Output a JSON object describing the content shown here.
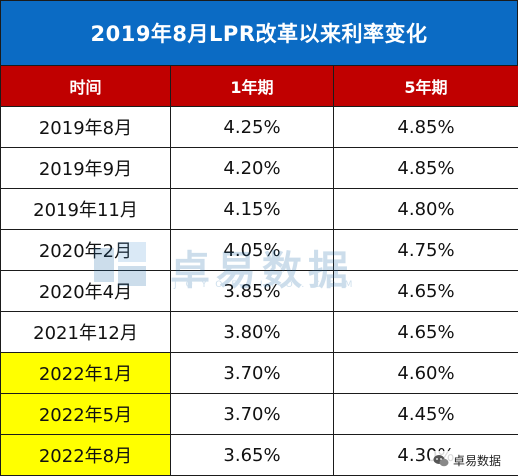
{
  "title": "2019年8月LPR改革以来利率变化",
  "columns": [
    "时间",
    "1年期",
    "5年期"
  ],
  "rows": [
    {
      "date": "2019年8月",
      "one_year": "4.25%",
      "five_year": "4.85%",
      "highlight": false
    },
    {
      "date": "2019年9月",
      "one_year": "4.20%",
      "five_year": "4.85%",
      "highlight": false
    },
    {
      "date": "2019年11月",
      "one_year": "4.15%",
      "five_year": "4.80%",
      "highlight": false
    },
    {
      "date": "2020年2月",
      "one_year": "4.05%",
      "five_year": "4.75%",
      "highlight": false
    },
    {
      "date": "2020年4月",
      "one_year": "3.85%",
      "five_year": "4.65%",
      "highlight": false
    },
    {
      "date": "2021年12月",
      "one_year": "3.80%",
      "five_year": "4.65%",
      "highlight": false
    },
    {
      "date": "2022年1月",
      "one_year": "3.70%",
      "five_year": "4.60%",
      "highlight": true
    },
    {
      "date": "2022年5月",
      "one_year": "3.70%",
      "five_year": "4.45%",
      "highlight": true
    },
    {
      "date": "2022年8月",
      "one_year": "3.65%",
      "five_year": "4.30%",
      "highlight": true
    }
  ],
  "watermark": {
    "text": "卓易数据",
    "subtext": "JOYOFAIFO.COM"
  },
  "footer_mark": {
    "icon": "wechat-icon",
    "label": "卓易数据"
  },
  "colors": {
    "title_bg": "#0b6bc4",
    "header_bg": "#c00000",
    "highlight": "#ffff00"
  }
}
